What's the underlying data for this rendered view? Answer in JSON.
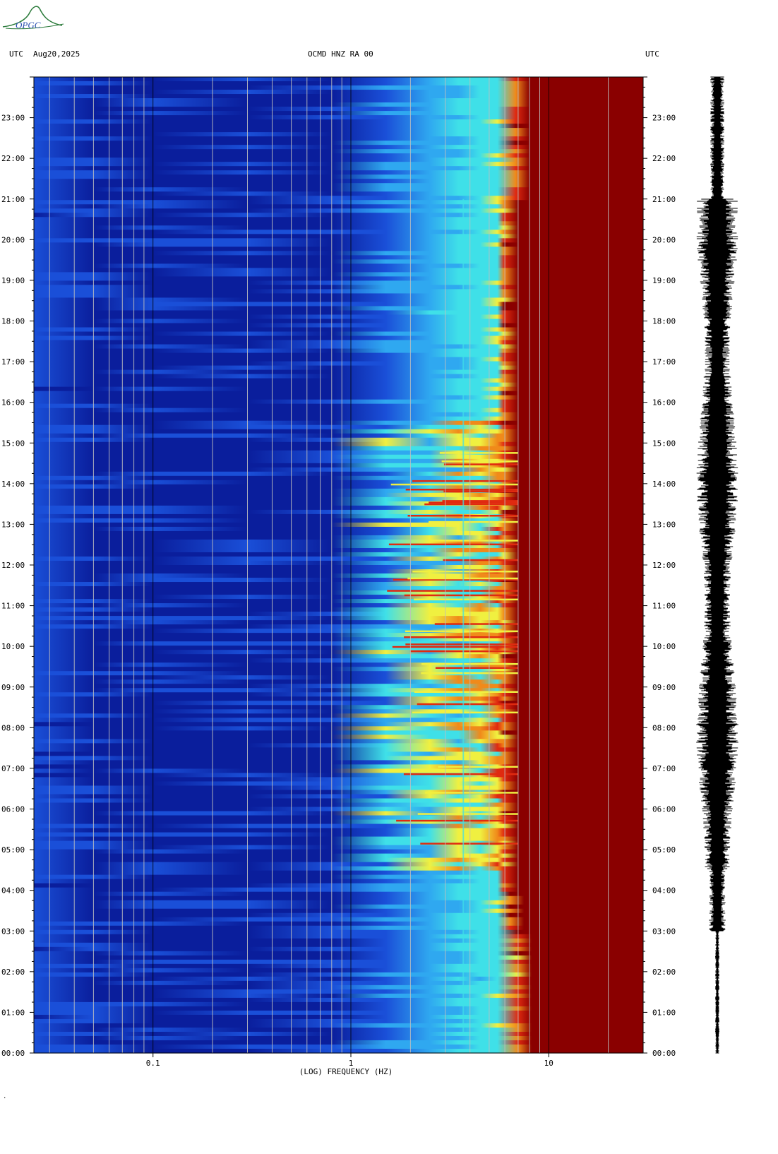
{
  "header": {
    "left_tz": "UTC",
    "date": "Aug20,2025",
    "station": "OCMD HNZ RA 00",
    "right_tz": "UTC"
  },
  "logo": {
    "text": "OPGC"
  },
  "footer_mark": ".",
  "chart_data": {
    "type": "heatmap",
    "title": "OCMD HNZ RA 00",
    "xlabel": "(LOG) FREQUENCY (HZ)",
    "x_scale": "log",
    "xlim": [
      0.025,
      30
    ],
    "x_ticks": [
      {
        "value": 0.1,
        "label": "0.1"
      },
      {
        "value": 1,
        "label": "1"
      },
      {
        "value": 10,
        "label": "10"
      }
    ],
    "ylabel": "UTC",
    "y_ticks_left": [
      "00:00",
      "01:00",
      "02:00",
      "03:00",
      "04:00",
      "05:00",
      "06:00",
      "07:00",
      "08:00",
      "09:00",
      "10:00",
      "11:00",
      "12:00",
      "13:00",
      "14:00",
      "15:00",
      "16:00",
      "17:00",
      "18:00",
      "19:00",
      "20:00",
      "21:00",
      "22:00",
      "23:00"
    ],
    "y_ticks_right": [
      "00:00",
      "01:00",
      "02:00",
      "03:00",
      "04:00",
      "05:00",
      "06:00",
      "07:00",
      "08:00",
      "09:00",
      "10:00",
      "11:00",
      "12:00",
      "13:00",
      "14:00",
      "15:00",
      "16:00",
      "17:00",
      "18:00",
      "19:00",
      "20:00",
      "21:00",
      "22:00",
      "23:00"
    ],
    "ylim_hours": [
      0,
      24
    ],
    "colormap": [
      "#0a1e9c",
      "#1a4fd8",
      "#2fa8f0",
      "#3fe0e8",
      "#f0f040",
      "#f08a1a",
      "#e02a10",
      "#8a0000"
    ],
    "saturation_onset_hz": {
      "hours_0_to_3": 8.2,
      "hours_3_to_4": 7.5,
      "hours_4_to_21": 7.0,
      "hours_21_to_24": 8.0
    },
    "seismogram": {
      "color": "#000000",
      "peak_amplitude_window_utc": [
        "05:00",
        "20:00"
      ]
    }
  }
}
